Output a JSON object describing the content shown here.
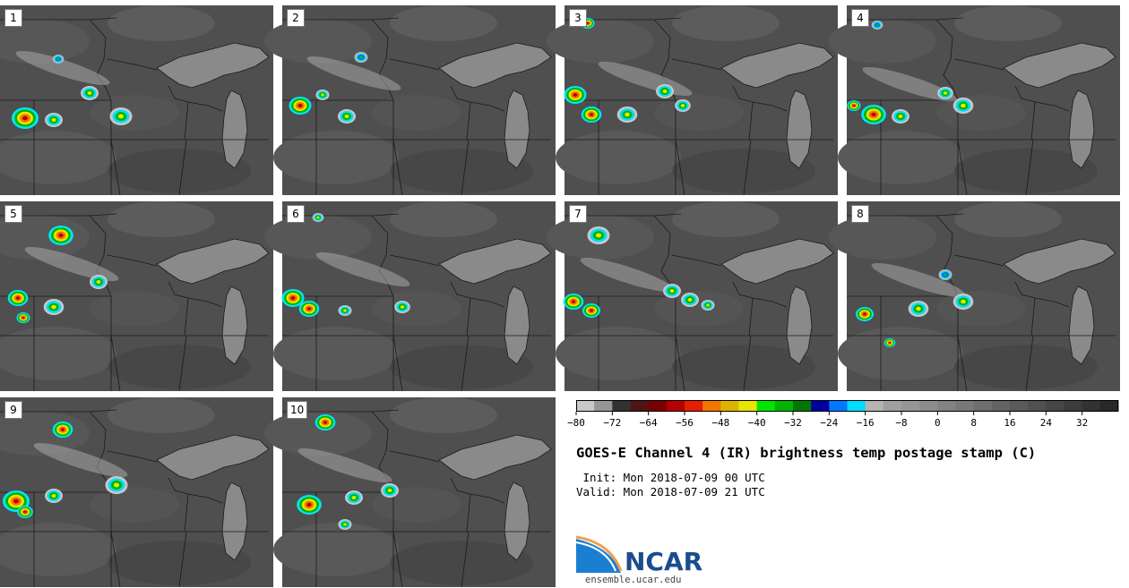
{
  "panels": [
    {
      "label": "1"
    },
    {
      "label": "2"
    },
    {
      "label": "3"
    },
    {
      "label": "4"
    },
    {
      "label": "5"
    },
    {
      "label": "6"
    },
    {
      "label": "7"
    },
    {
      "label": "8"
    },
    {
      "label": "9"
    },
    {
      "label": "10"
    }
  ],
  "colorbar": {
    "colors": [
      "#c8c8c8",
      "#969696",
      "#323232",
      "#501414",
      "#780000",
      "#b40000",
      "#e61e00",
      "#f07800",
      "#dcb400",
      "#e6e600",
      "#00e600",
      "#00b400",
      "#007800",
      "#0000a0",
      "#0078ff",
      "#00dcff",
      "#b4b4b4",
      "#a0a0a0",
      "#969696",
      "#8c8c8c",
      "#828282",
      "#787878",
      "#6e6e6e",
      "#646464",
      "#5a5a5a",
      "#505050",
      "#464646",
      "#3c3c3c",
      "#323232",
      "#282828"
    ],
    "ticks": [
      "−80",
      "−72",
      "−64",
      "−56",
      "−48",
      "−40",
      "−32",
      "−24",
      "−16",
      "−8",
      "0",
      "8",
      "16",
      "24",
      "32"
    ]
  },
  "title": "GOES-E Channel 4 (IR) brightness temp postage stamp (C)",
  "init": " Init: Mon 2018-07-09 00 UTC",
  "valid": "Valid: Mon 2018-07-09 21 UTC",
  "logo": {
    "text": "NCAR",
    "url": "ensemble.ucar.edu"
  }
}
